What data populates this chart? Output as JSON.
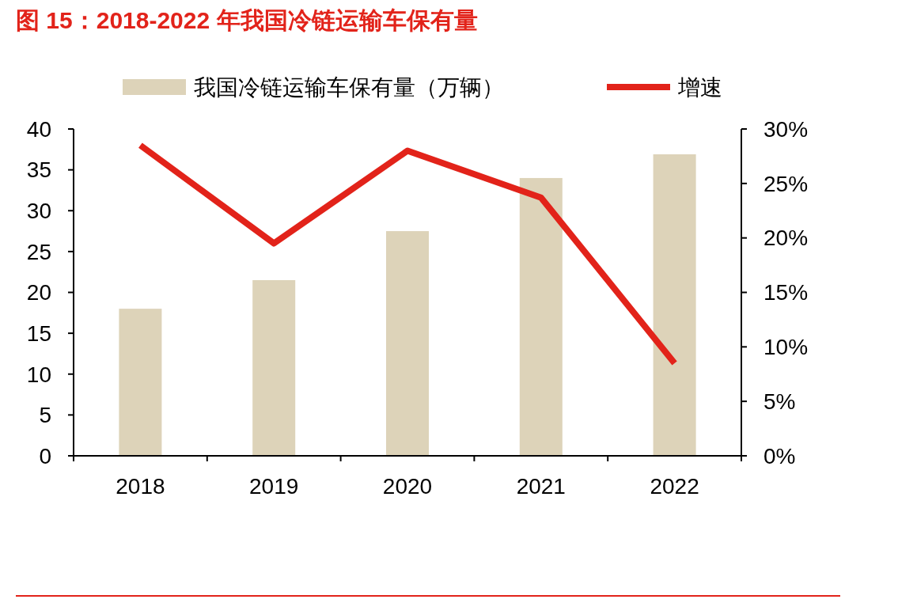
{
  "chart_data": {
    "type": "bar",
    "title": "图 15：2018-2022 年我国冷链运输车保有量",
    "categories": [
      "2018",
      "2019",
      "2020",
      "2021",
      "2022"
    ],
    "series": [
      {
        "name": "我国冷链运输车保有量（万辆）",
        "color": "#ddd3b9",
        "values": [
          18.0,
          21.5,
          27.5,
          34.0,
          36.9
        ]
      },
      {
        "name": "增速",
        "type": "line",
        "axis": "y2",
        "color": "#e2231a",
        "values": [
          28.5,
          19.5,
          28.0,
          23.7,
          8.5
        ]
      }
    ],
    "ylim": [
      0,
      40
    ],
    "yticks": [
      0,
      5,
      10,
      15,
      20,
      25,
      30,
      35,
      40
    ],
    "y2lim": [
      0,
      30
    ],
    "y2ticks": [
      {
        "value": 0,
        "label": "0%"
      },
      {
        "value": 5,
        "label": "5%"
      },
      {
        "value": 10,
        "label": "10%"
      },
      {
        "value": 15,
        "label": "15%"
      },
      {
        "value": 20,
        "label": "20%"
      },
      {
        "value": 25,
        "label": "25%"
      },
      {
        "value": 30,
        "label": "30%"
      }
    ],
    "legend": "top",
    "grid": false,
    "marker": "none",
    "line_style": "solid"
  }
}
